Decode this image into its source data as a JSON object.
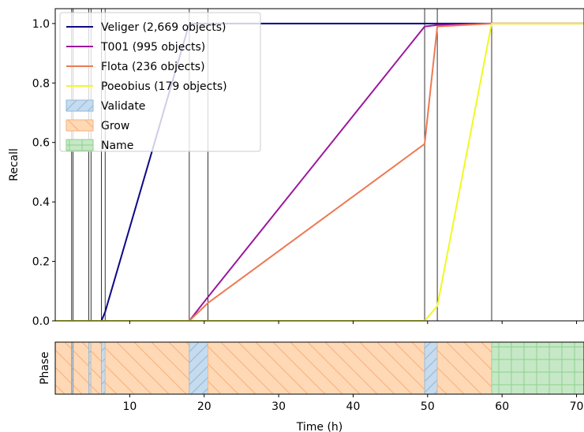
{
  "chart_data": [
    {
      "type": "line",
      "ylabel": "Recall",
      "xlim": [
        0,
        71
      ],
      "ylim": [
        0,
        1.05
      ],
      "yticks": [
        "0.0",
        "0.2",
        "0.4",
        "0.6",
        "0.8",
        "1.0"
      ],
      "legend_position": "top-left",
      "series": [
        {
          "name": "Veliger (2,669 objects)",
          "color": "#0d0887",
          "x": [
            0,
            6.2,
            6.7,
            18.0,
            20.5,
            49.6,
            51.3,
            58.6,
            71
          ],
          "y": [
            0,
            0,
            0.03,
            1.0,
            1.0,
            1.0,
            1.0,
            1.0,
            1.0
          ]
        },
        {
          "name": "T001 (995 objects)",
          "color": "#9c179e",
          "x": [
            0,
            18.0,
            20.5,
            49.6,
            51.3,
            58.6,
            71
          ],
          "y": [
            0,
            0,
            0.08,
            0.99,
            0.995,
            1.0,
            1.0
          ]
        },
        {
          "name": "Flota (236 objects)",
          "color": "#ed7953",
          "x": [
            0,
            18.0,
            20.5,
            49.6,
            51.3,
            58.6,
            71
          ],
          "y": [
            0,
            0,
            0.06,
            0.595,
            0.99,
            1.0,
            1.0
          ]
        },
        {
          "name": "Poeobius (179 objects)",
          "color": "#f0f921",
          "x": [
            0,
            49.6,
            51.3,
            58.6,
            71
          ],
          "y": [
            0,
            0,
            0.05,
            1.0,
            1.0
          ]
        }
      ],
      "phase_legend": [
        {
          "name": "Validate",
          "color": "#1f77b4"
        },
        {
          "name": "Grow",
          "color": "#ff7f0e"
        },
        {
          "name": "Name",
          "color": "#2ca02c"
        }
      ],
      "vertical_lines_x": [
        2.2,
        2.4,
        4.5,
        4.8,
        6.2,
        6.7,
        18.0,
        20.5,
        49.6,
        51.3,
        58.6
      ]
    },
    {
      "type": "area",
      "ylabel": "Phase",
      "xlabel": "Time (h)",
      "xlim": [
        0,
        71
      ],
      "xticks": [
        "10",
        "20",
        "30",
        "40",
        "50",
        "60",
        "70"
      ],
      "xtick_values": [
        10,
        20,
        30,
        40,
        50,
        60,
        70
      ],
      "phases": [
        {
          "phase": "Grow",
          "start": 0,
          "end": 2.2
        },
        {
          "phase": "Validate",
          "start": 2.2,
          "end": 2.4
        },
        {
          "phase": "Grow",
          "start": 2.4,
          "end": 4.5
        },
        {
          "phase": "Validate",
          "start": 4.5,
          "end": 4.8
        },
        {
          "phase": "Grow",
          "start": 4.8,
          "end": 6.2
        },
        {
          "phase": "Validate",
          "start": 6.2,
          "end": 6.7
        },
        {
          "phase": "Grow",
          "start": 6.7,
          "end": 18.0
        },
        {
          "phase": "Validate",
          "start": 18.0,
          "end": 20.5
        },
        {
          "phase": "Grow",
          "start": 20.5,
          "end": 49.6
        },
        {
          "phase": "Validate",
          "start": 49.6,
          "end": 51.3
        },
        {
          "phase": "Grow",
          "start": 51.3,
          "end": 58.6
        },
        {
          "phase": "Name",
          "start": 58.6,
          "end": 71
        }
      ]
    }
  ]
}
